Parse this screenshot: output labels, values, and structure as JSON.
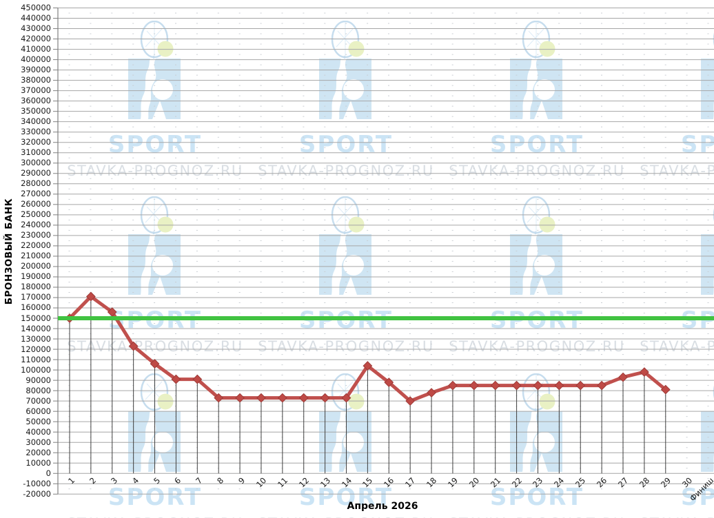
{
  "chart_data": {
    "type": "line",
    "title": "",
    "xlabel": "Апрель 2026",
    "ylabel": "БРОНЗОВЫЙ БАНК",
    "categories": [
      "1",
      "2",
      "3",
      "4",
      "5",
      "6",
      "7",
      "8",
      "9",
      "10",
      "11",
      "12",
      "13",
      "14",
      "15",
      "16",
      "17",
      "18",
      "19",
      "20",
      "21",
      "22",
      "23",
      "24",
      "25",
      "26",
      "27",
      "28",
      "29",
      "30",
      "Финиш"
    ],
    "series": [
      {
        "name": "БРОНЗОВЫЙ БАНК",
        "type": "line",
        "color": "#c0504d",
        "marker": "diamond",
        "values": [
          150000,
          171000,
          156000,
          123000,
          106000,
          91000,
          91000,
          73000,
          73000,
          73000,
          73000,
          73000,
          73000,
          73000,
          104000,
          88000,
          70000,
          78000,
          85000,
          85000,
          85000,
          85000,
          85000,
          85000,
          85000,
          85000,
          93000,
          98000,
          81000,
          null,
          null
        ]
      },
      {
        "name": "150000",
        "type": "reference-line",
        "color": "#41c341",
        "value": 150000
      }
    ],
    "ylim": [
      -20000,
      450000
    ],
    "ytick_step": 10000,
    "grid": {
      "major": "solid",
      "minor": "dotted"
    },
    "drop_lines": true,
    "legend": "none"
  },
  "watermark": {
    "brand": "SPORT",
    "site": "STAVKA-PROGNOZ.RU"
  },
  "colors": {
    "series_line": "#c0504d",
    "marker_fill": "#bf4a46",
    "marker_stroke": "#9d3b38",
    "reference_line": "#41c341",
    "grid_major": "#a6a6a6",
    "grid_minor": "#c9ced3",
    "axis": "#7f7f7f",
    "drop_line": "#3f3f3f",
    "text": "#1a1a1a",
    "watermark_blue": "#cfe5f3",
    "watermark_outline": "#c6ddee",
    "watermark_brand": "#cbe4f5",
    "watermark_site": "#d9dee3",
    "ball": "#e9f1c4"
  }
}
